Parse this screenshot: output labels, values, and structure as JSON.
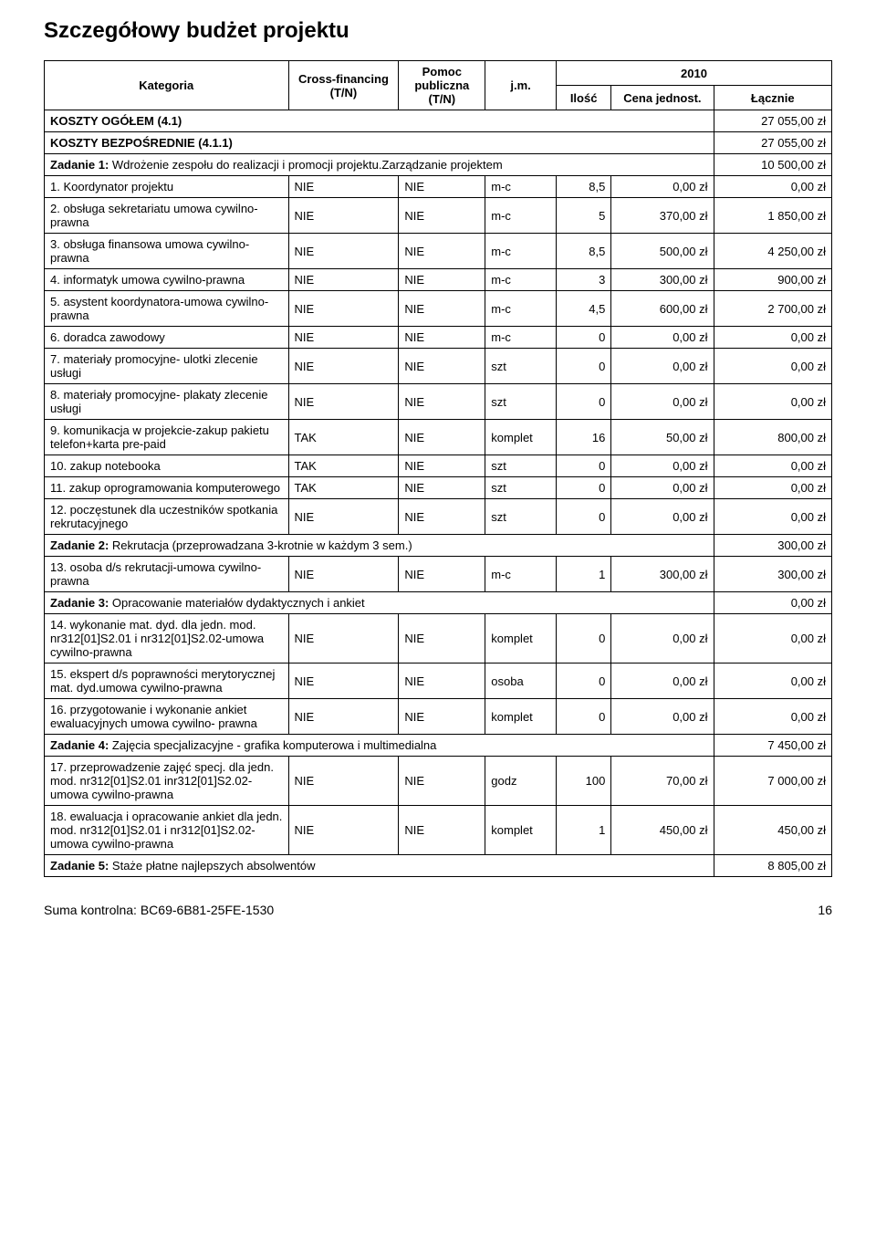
{
  "title": "Szczegółowy budżet projektu",
  "headers": {
    "kategoria": "Kategoria",
    "cross_financing": "Cross-financing (T/N)",
    "pomoc_publiczna": "Pomoc publiczna (T/N)",
    "jm": "j.m.",
    "year": "2010",
    "ilosc": "Ilość",
    "cena": "Cena jednost.",
    "lacznie": "Łącznie"
  },
  "sections": [
    {
      "label_b": "KOSZTY OGÓŁEM (4.1)",
      "label_n": "",
      "value": "27 055,00 zł"
    },
    {
      "label_b": "KOSZTY BEZPOŚREDNIE (4.1.1)",
      "label_n": "",
      "value": "27 055,00 zł"
    },
    {
      "label_b": "Zadanie 1:",
      "label_n": " Wdrożenie zespołu do realizacji i promocji projektu.Zarządzanie projektem",
      "value": "10 500,00 zł"
    }
  ],
  "rows1": [
    {
      "cat": "1. Koordynator projektu",
      "cf": "NIE",
      "pp": "NIE",
      "jm": "m-c",
      "ilosc": "8,5",
      "cena": "0,00 zł",
      "lacznie": "0,00 zł"
    },
    {
      "cat": "2. obsługa sekretariatu umowa cywilno-prawna",
      "cf": "NIE",
      "pp": "NIE",
      "jm": "m-c",
      "ilosc": "5",
      "cena": "370,00 zł",
      "lacznie": "1 850,00 zł"
    },
    {
      "cat": "3. obsługa finansowa umowa cywilno- prawna",
      "cf": "NIE",
      "pp": "NIE",
      "jm": "m-c",
      "ilosc": "8,5",
      "cena": "500,00 zł",
      "lacznie": "4 250,00 zł"
    },
    {
      "cat": "4. informatyk umowa cywilno-prawna",
      "cf": "NIE",
      "pp": "NIE",
      "jm": "m-c",
      "ilosc": "3",
      "cena": "300,00 zł",
      "lacznie": "900,00 zł"
    },
    {
      "cat": "5. asystent koordynatora-umowa cywilno-prawna",
      "cf": "NIE",
      "pp": "NIE",
      "jm": "m-c",
      "ilosc": "4,5",
      "cena": "600,00 zł",
      "lacznie": "2 700,00 zł"
    },
    {
      "cat": "6. doradca zawodowy",
      "cf": "NIE",
      "pp": "NIE",
      "jm": "m-c",
      "ilosc": "0",
      "cena": "0,00 zł",
      "lacznie": "0,00 zł"
    },
    {
      "cat": "7. materiały promocyjne- ulotki zlecenie usługi",
      "cf": "NIE",
      "pp": "NIE",
      "jm": "szt",
      "ilosc": "0",
      "cena": "0,00 zł",
      "lacznie": "0,00 zł"
    },
    {
      "cat": "8. materiały promocyjne- plakaty zlecenie usługi",
      "cf": "NIE",
      "pp": "NIE",
      "jm": "szt",
      "ilosc": "0",
      "cena": "0,00 zł",
      "lacznie": "0,00 zł"
    },
    {
      "cat": "9. komunikacja w projekcie-zakup pakietu telefon+karta pre-paid",
      "cf": "TAK",
      "pp": "NIE",
      "jm": "komplet",
      "ilosc": "16",
      "cena": "50,00 zł",
      "lacznie": "800,00 zł"
    },
    {
      "cat": "10. zakup notebooka",
      "cf": "TAK",
      "pp": "NIE",
      "jm": "szt",
      "ilosc": "0",
      "cena": "0,00 zł",
      "lacznie": "0,00 zł"
    },
    {
      "cat": "11. zakup oprogramowania komputerowego",
      "cf": "TAK",
      "pp": "NIE",
      "jm": "szt",
      "ilosc": "0",
      "cena": "0,00 zł",
      "lacznie": "0,00 zł"
    },
    {
      "cat": "12. poczęstunek dla uczestników spotkania rekrutacyjnego",
      "cf": "NIE",
      "pp": "NIE",
      "jm": "szt",
      "ilosc": "0",
      "cena": "0,00 zł",
      "lacznie": "0,00 zł"
    }
  ],
  "section2": {
    "label_b": "Zadanie 2:",
    "label_n": " Rekrutacja (przeprowadzana 3-krotnie w każdym 3 sem.)",
    "value": "300,00 zł"
  },
  "rows2": [
    {
      "cat": "13. osoba d/s rekrutacji-umowa cywilno-prawna",
      "cf": "NIE",
      "pp": "NIE",
      "jm": "m-c",
      "ilosc": "1",
      "cena": "300,00 zł",
      "lacznie": "300,00 zł"
    }
  ],
  "section3": {
    "label_b": "Zadanie 3:",
    "label_n": " Opracowanie materiałów dydaktycznych i ankiet",
    "value": "0,00 zł"
  },
  "rows3": [
    {
      "cat": "14. wykonanie mat. dyd. dla jedn. mod. nr312[01]S2.01 i nr312[01]S2.02-umowa cywilno-prawna",
      "cf": "NIE",
      "pp": "NIE",
      "jm": "komplet",
      "ilosc": "0",
      "cena": "0,00 zł",
      "lacznie": "0,00 zł"
    },
    {
      "cat": "15. ekspert d/s poprawności merytorycznej mat. dyd.umowa cywilno-prawna",
      "cf": "NIE",
      "pp": "NIE",
      "jm": "osoba",
      "ilosc": "0",
      "cena": "0,00 zł",
      "lacznie": "0,00 zł"
    },
    {
      "cat": "16. przygotowanie i wykonanie ankiet ewaluacyjnych umowa cywilno- prawna",
      "cf": "NIE",
      "pp": "NIE",
      "jm": "komplet",
      "ilosc": "0",
      "cena": "0,00 zł",
      "lacznie": "0,00 zł"
    }
  ],
  "section4": {
    "label_b": "Zadanie 4:",
    "label_n": " Zajęcia specjalizacyjne - grafika komputerowa i multimedialna",
    "value": "7 450,00 zł"
  },
  "rows4": [
    {
      "cat": "17. przeprowadzenie zajęć specj. dla jedn. mod. nr312[01]S2.01 inr312[01]S2.02-umowa cywilno-prawna",
      "cf": "NIE",
      "pp": "NIE",
      "jm": "godz",
      "ilosc": "100",
      "cena": "70,00 zł",
      "lacznie": "7 000,00 zł"
    },
    {
      "cat": "18. ewaluacja i opracowanie ankiet dla jedn. mod. nr312[01]S2.01 i nr312[01]S2.02-umowa cywilno-prawna",
      "cf": "NIE",
      "pp": "NIE",
      "jm": "komplet",
      "ilosc": "1",
      "cena": "450,00 zł",
      "lacznie": "450,00 zł"
    }
  ],
  "section5": {
    "label_b": "Zadanie 5:",
    "label_n": " Staże płatne najlepszych absolwentów",
    "value": "8 805,00 zł"
  },
  "footer": {
    "checksum_label": "Suma kontrolna: ",
    "checksum": "BC69-6B81-25FE-1530",
    "page": "16"
  }
}
